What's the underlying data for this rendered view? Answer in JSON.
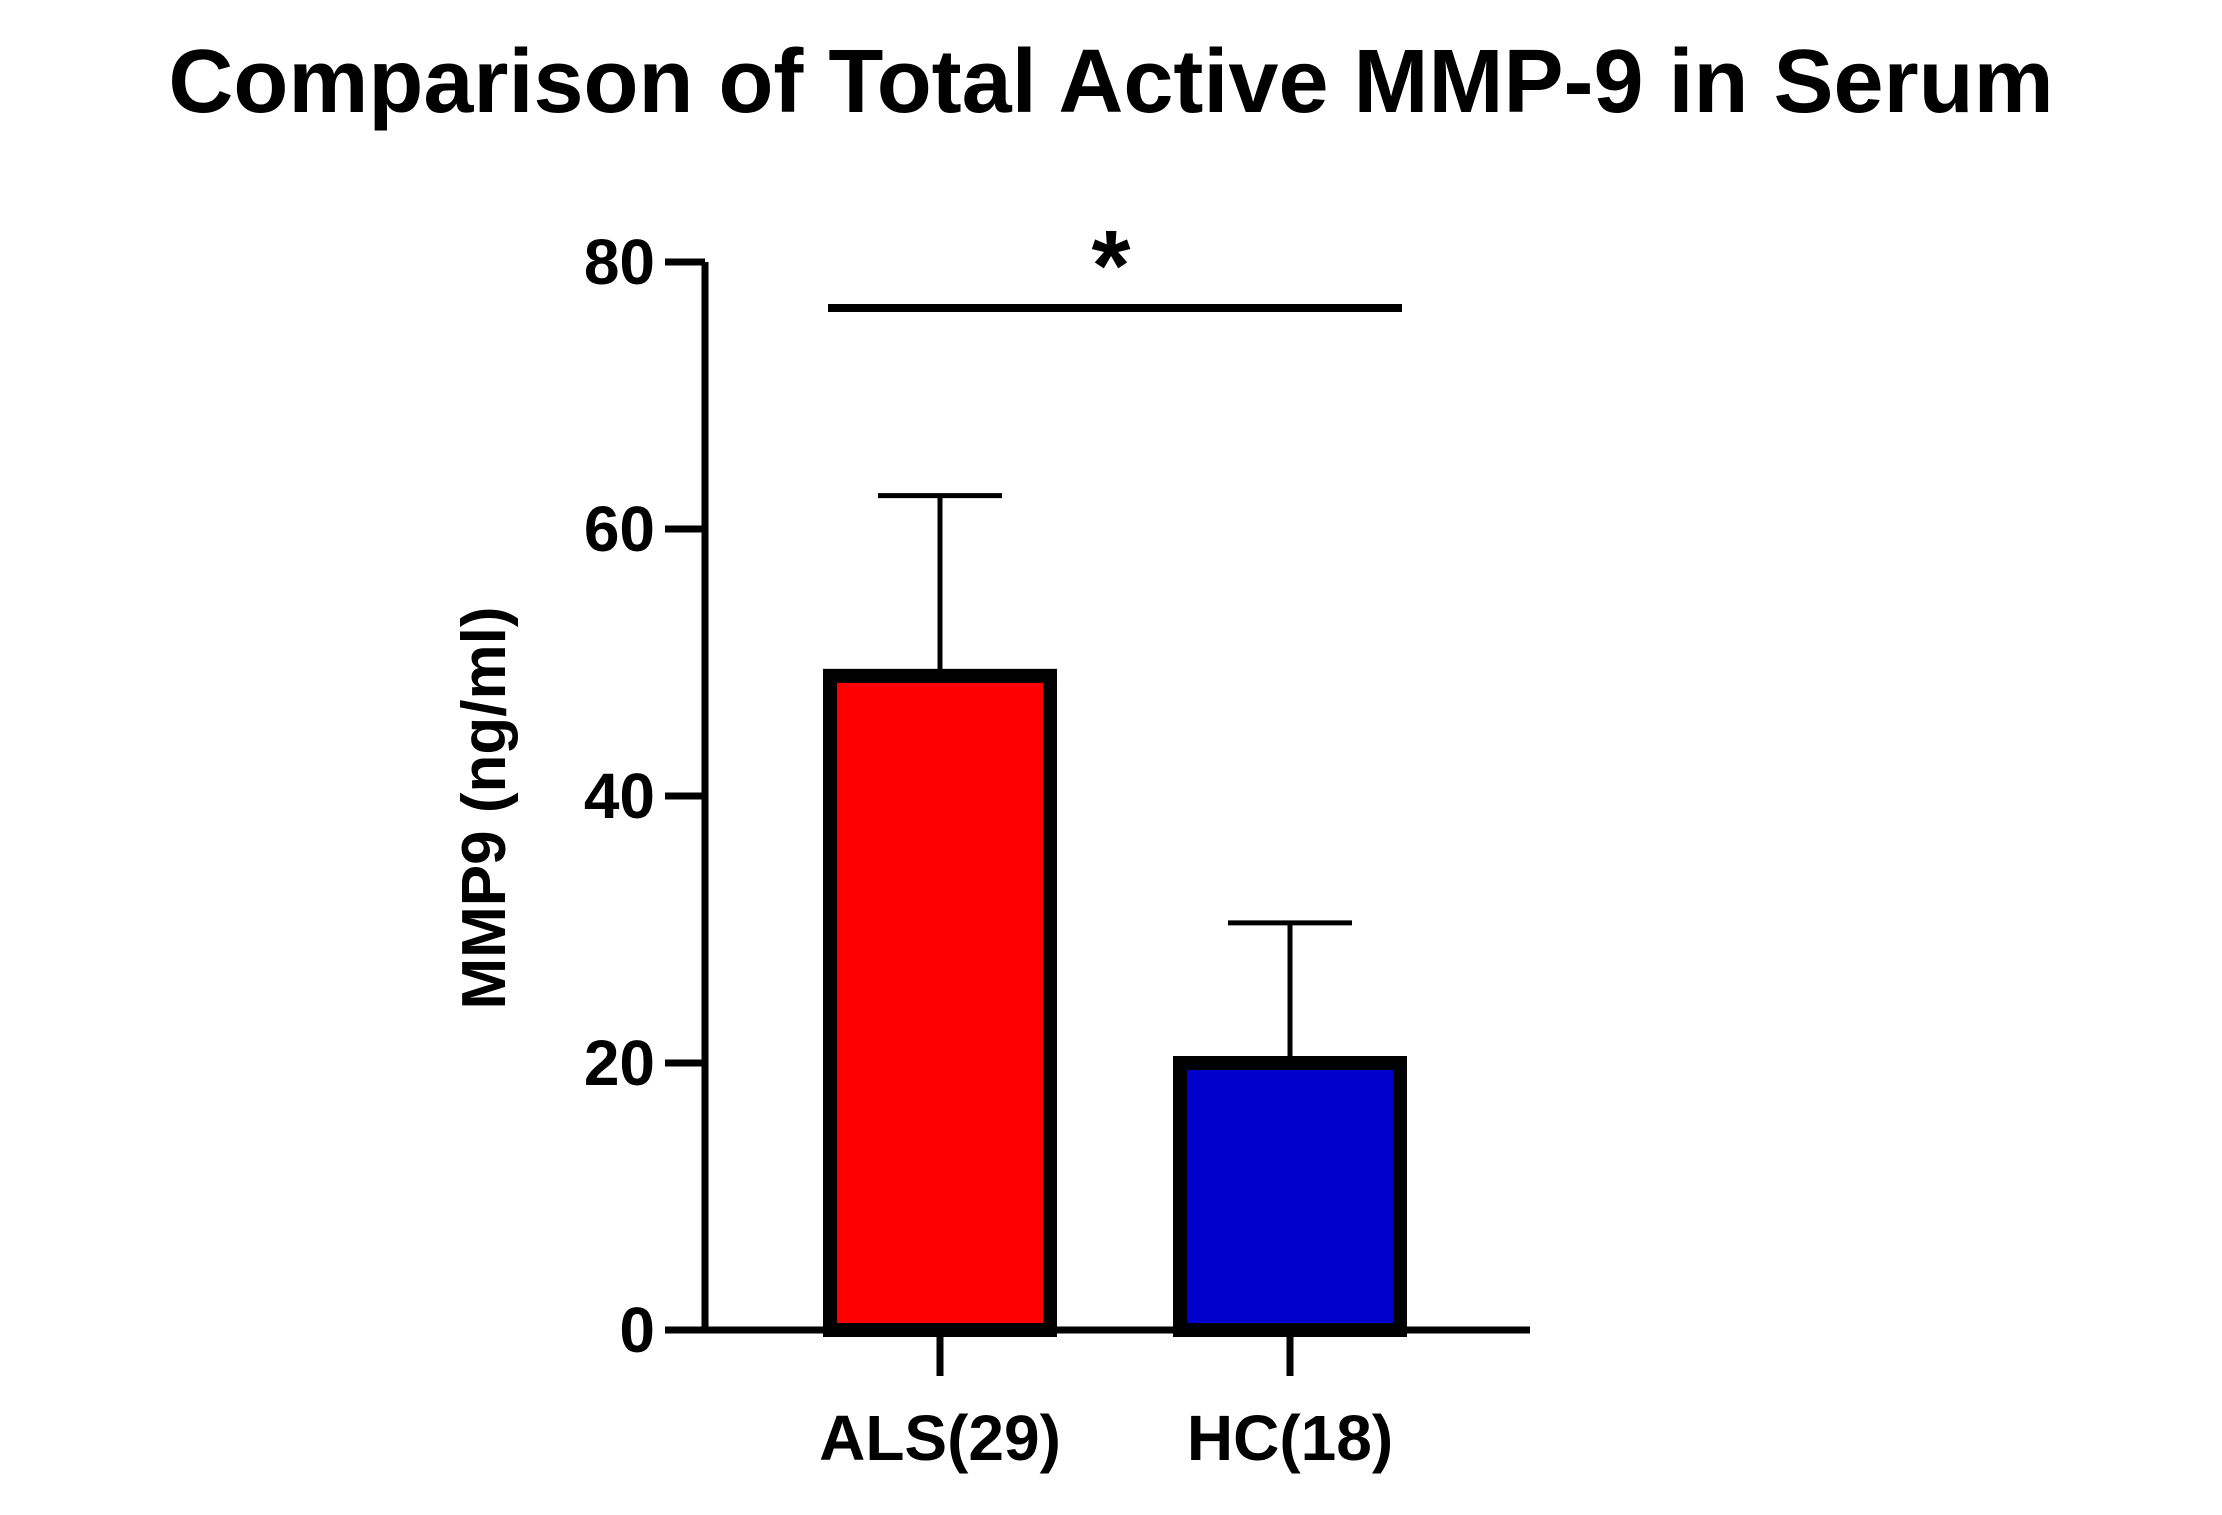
{
  "chart_data": {
    "type": "bar",
    "title": "Comparison of Total Active MMP-9 in Serum",
    "xlabel": "",
    "ylabel": "MMP9 (ng/ml)",
    "ylim": [
      0,
      80
    ],
    "yticks": [
      0,
      20,
      40,
      60,
      80
    ],
    "categories": [
      "ALS(29)",
      "HC(18)"
    ],
    "values": [
      49,
      20
    ],
    "error_upper": [
      62.5,
      30.5
    ],
    "bar_colors": [
      "#ff0000",
      "#0000cc"
    ],
    "significance": {
      "label": "*",
      "between": [
        0,
        1
      ]
    },
    "grid": false,
    "legend": "none"
  }
}
